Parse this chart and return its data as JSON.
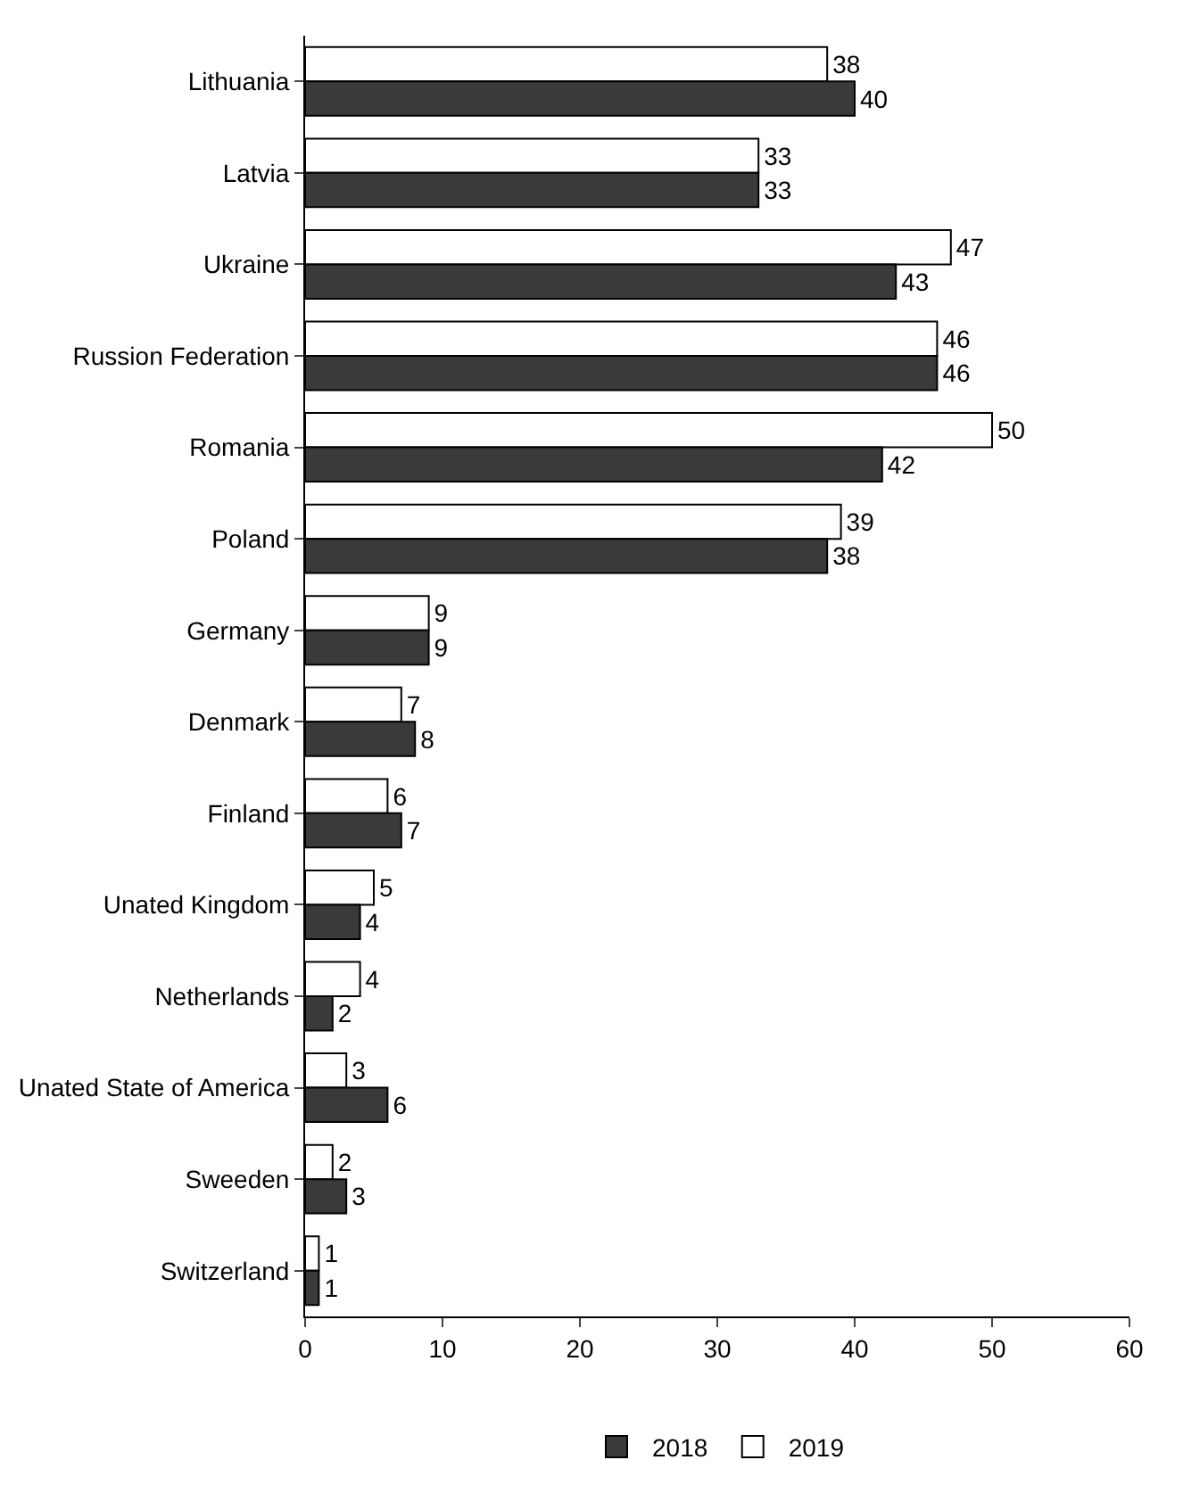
{
  "chart_data": {
    "type": "bar",
    "orientation": "horizontal",
    "categories": [
      "Lithuania",
      "Latvia",
      "Ukraine",
      "Russion Federation",
      "Romania",
      "Poland",
      "Germany",
      "Denmark",
      "Finland",
      "Unated Kingdom",
      "Netherlands",
      "Unated State of America",
      "Sweeden",
      "Switzerland"
    ],
    "series": [
      {
        "name": "2018",
        "color": "#3a3a3a",
        "values": [
          40,
          33,
          43,
          46,
          42,
          38,
          9,
          8,
          7,
          4,
          2,
          6,
          3,
          1
        ]
      },
      {
        "name": "2019",
        "color": "#ffffff",
        "values": [
          38,
          33,
          47,
          46,
          50,
          39,
          9,
          7,
          6,
          5,
          4,
          3,
          2,
          1
        ]
      }
    ],
    "xlim": [
      0,
      60
    ],
    "xticks": [
      0,
      10,
      20,
      30,
      40,
      50,
      60
    ],
    "legend": "bottom",
    "data_labels": true
  }
}
